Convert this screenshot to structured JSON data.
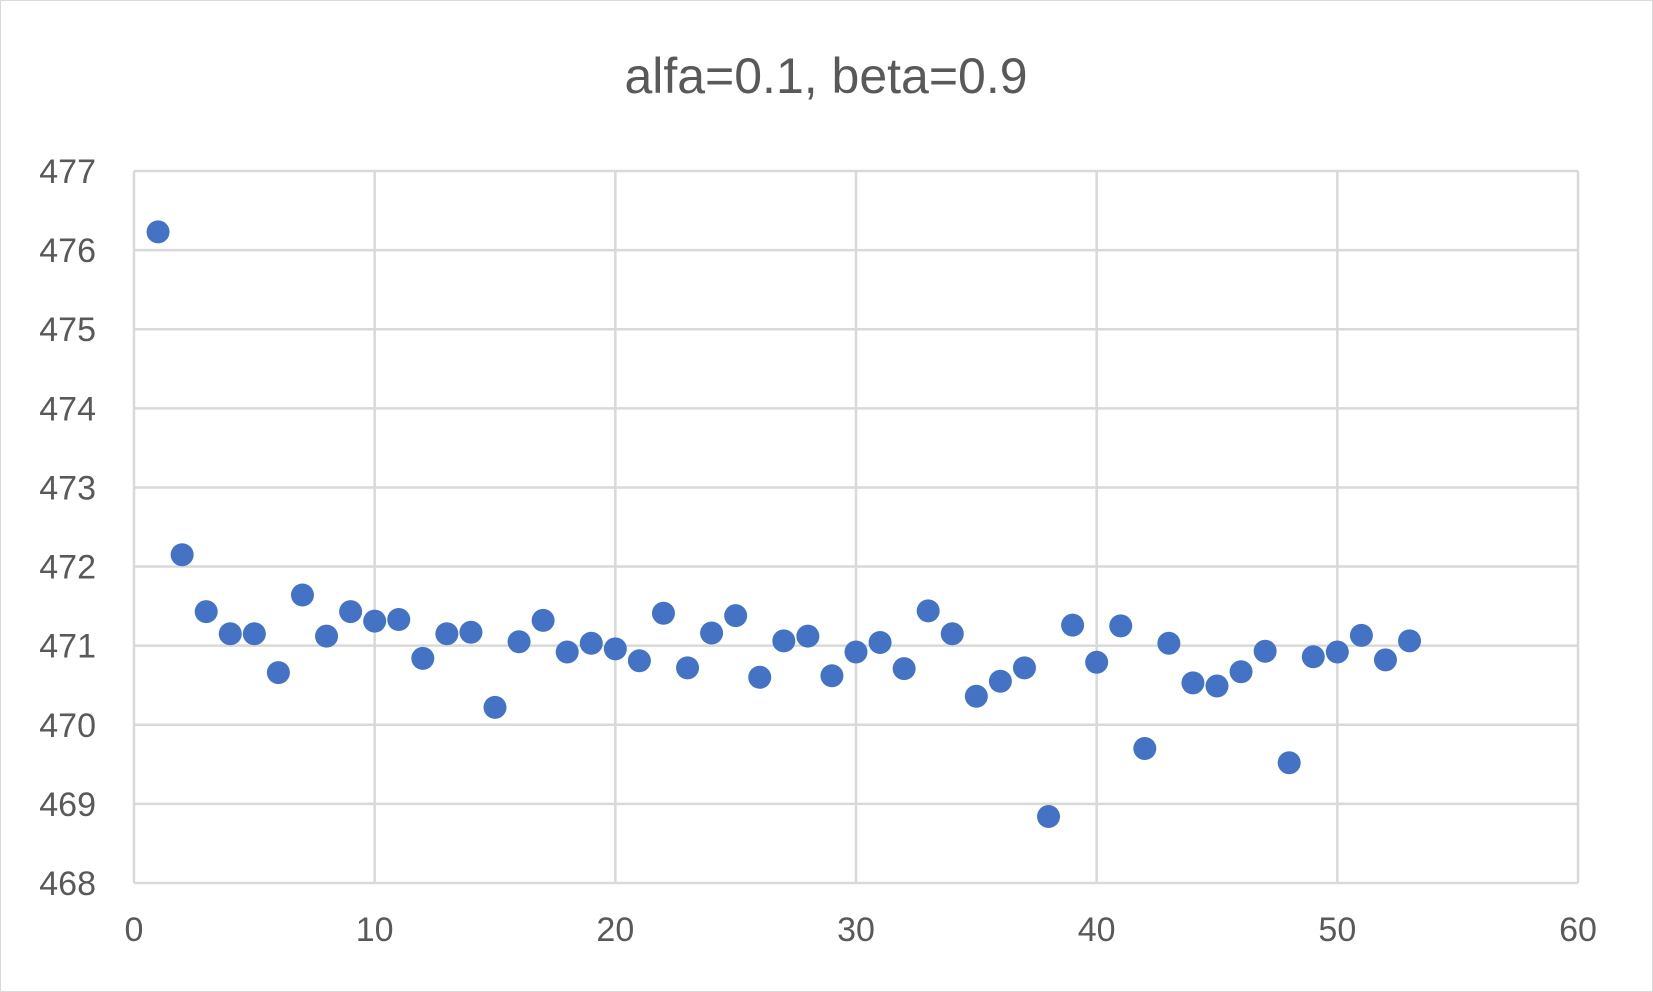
{
  "chart_data": {
    "type": "scatter",
    "title": "alfa=0.1, beta=0.9",
    "xlabel": "",
    "ylabel": "",
    "xlim": [
      0,
      60
    ],
    "ylim": [
      468,
      477
    ],
    "xticks": [
      "0",
      "10",
      "20",
      "30",
      "40",
      "50",
      "60"
    ],
    "yticks": [
      "468",
      "469",
      "470",
      "471",
      "472",
      "473",
      "474",
      "475",
      "476",
      "477"
    ],
    "grid": true,
    "legend": "none",
    "marker_color": "#4472c4",
    "series": [
      {
        "x": [
          1,
          2,
          3,
          4,
          5,
          6,
          7,
          8,
          9,
          10,
          11,
          12,
          13,
          14,
          15,
          16,
          17,
          18,
          19,
          20,
          21,
          22,
          23,
          24,
          25,
          26,
          27,
          28,
          29,
          30,
          31,
          32,
          33,
          34,
          35,
          36,
          37,
          38,
          39,
          40,
          41,
          42,
          43,
          44,
          45,
          46,
          47,
          48,
          49,
          50,
          51,
          52,
          53
        ],
        "y": [
          476.23,
          472.15,
          471.43,
          471.15,
          471.15,
          470.66,
          471.64,
          471.12,
          471.43,
          471.31,
          471.33,
          470.84,
          471.15,
          471.17,
          470.22,
          471.05,
          471.32,
          470.92,
          471.03,
          470.96,
          470.81,
          471.41,
          470.72,
          471.16,
          471.38,
          470.6,
          471.06,
          471.12,
          470.62,
          470.92,
          471.04,
          470.71,
          471.44,
          471.15,
          470.36,
          470.55,
          470.72,
          468.84,
          471.26,
          470.79,
          471.25,
          469.7,
          471.03,
          470.53,
          470.49,
          470.67,
          470.93,
          469.52,
          470.86,
          470.92,
          471.13,
          470.82,
          471.06
        ]
      }
    ]
  }
}
